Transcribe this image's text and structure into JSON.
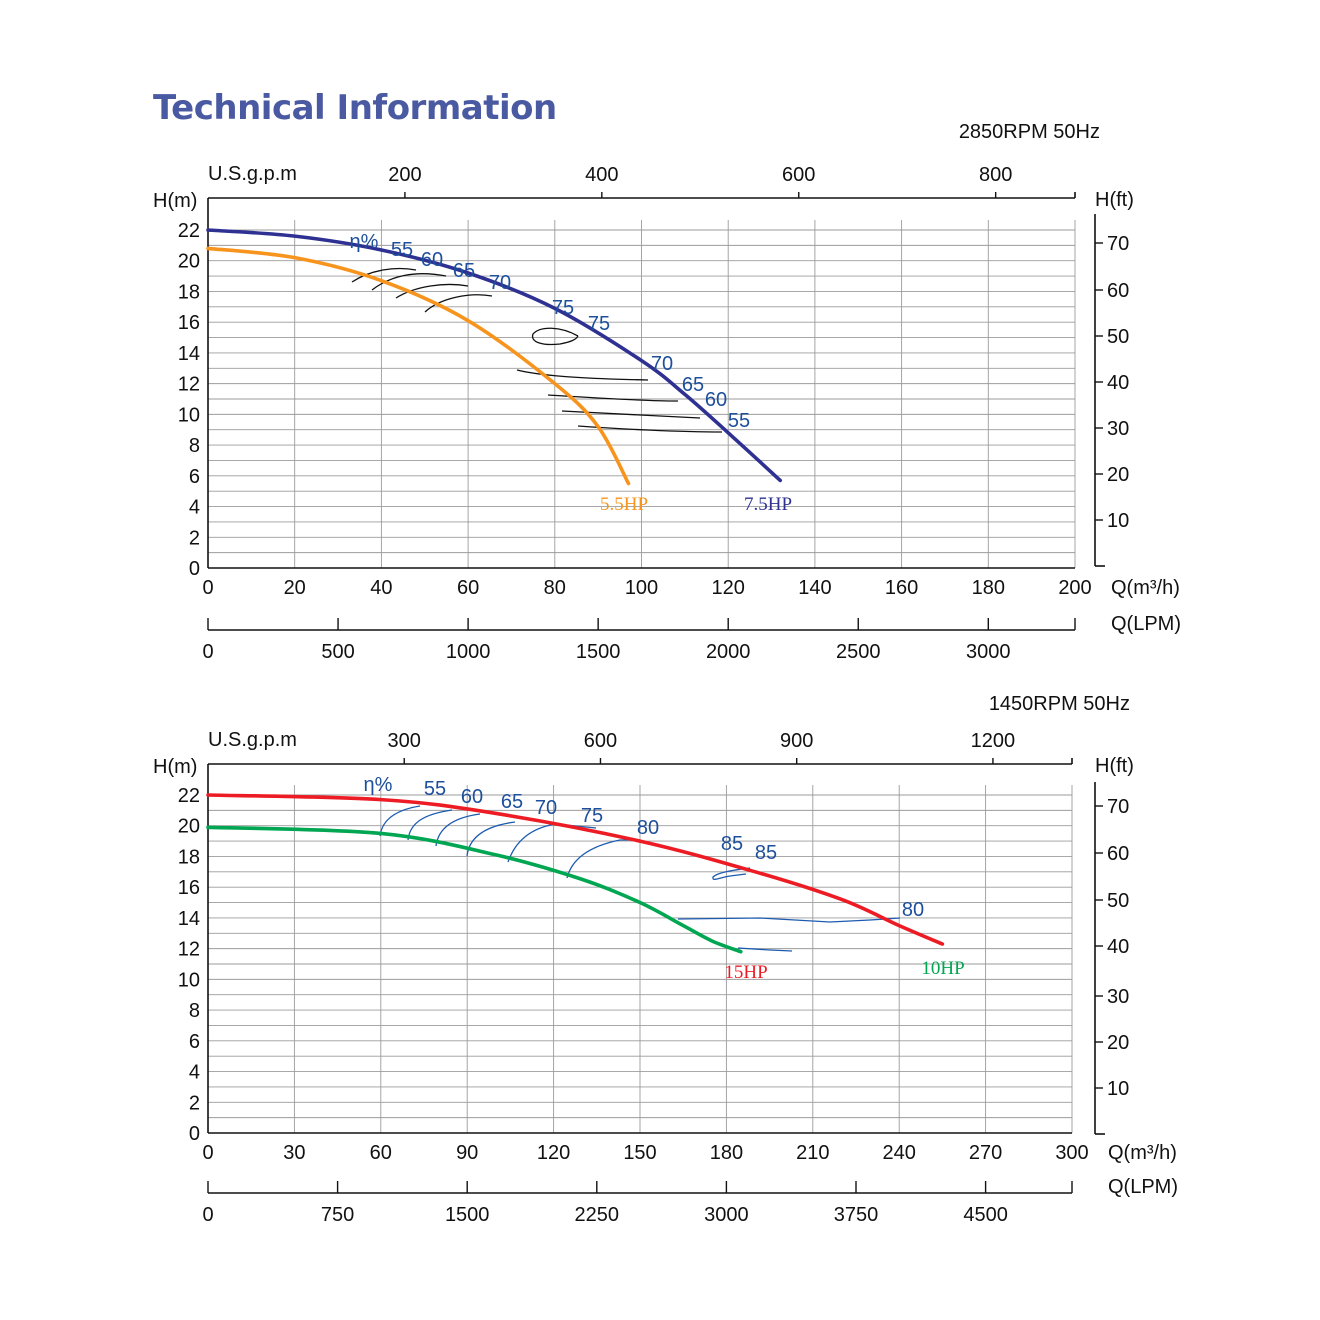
{
  "page": {
    "title": "Technical Information"
  },
  "chart_data": [
    {
      "type": "line",
      "speed_label": "2850RPM  50Hz",
      "xlabel": "Q(m³/h)",
      "xlabel_secondary": "Q(LPM)",
      "xlabel_top": "U.S.g.p.m",
      "ylabel": "H(m)",
      "ylabel_right": "H(ft)",
      "xlim": [
        0,
        200
      ],
      "ylim": [
        0,
        22
      ],
      "grid": true,
      "x_ticks": [
        "0",
        "20",
        "40",
        "60",
        "80",
        "100",
        "120",
        "140",
        "160",
        "180",
        "200"
      ],
      "y_ticks": [
        "0",
        "2",
        "4",
        "6",
        "8",
        "10",
        "12",
        "14",
        "16",
        "18",
        "20",
        "22"
      ],
      "top_ticks": [
        "200",
        "400",
        "600",
        "800"
      ],
      "right_ticks": [
        "10",
        "20",
        "30",
        "40",
        "50",
        "60",
        "70"
      ],
      "lpm_ticks": [
        "0",
        "500",
        "1000",
        "1500",
        "2000",
        "2500",
        "3000"
      ],
      "series": [
        {
          "name": "7.5HP",
          "color": "#2e3192",
          "points": [
            [
              0,
              22
            ],
            [
              20,
              21.6
            ],
            [
              40,
              20.7
            ],
            [
              60,
              19.2
            ],
            [
              80,
              16.9
            ],
            [
              100,
              13.5
            ],
            [
              110,
              11.3
            ],
            [
              120,
              8.8
            ],
            [
              132,
              5.7
            ]
          ]
        },
        {
          "name": "5.5HP",
          "color": "#f7941d",
          "points": [
            [
              0,
              20.8
            ],
            [
              20,
              20.2
            ],
            [
              40,
              18.7
            ],
            [
              60,
              16.1
            ],
            [
              80,
              12.0
            ],
            [
              90,
              9.2
            ],
            [
              97,
              5.5
            ]
          ]
        }
      ],
      "efficiency_symbol": "η%",
      "efficiency_labels": [
        "55",
        "60",
        "65",
        "70",
        "75",
        "75",
        "70",
        "65",
        "60",
        "55"
      ]
    },
    {
      "type": "line",
      "speed_label": "1450RPM  50Hz",
      "xlabel": "Q(m³/h)",
      "xlabel_secondary": "Q(LPM)",
      "xlabel_top": "U.S.g.p.m",
      "ylabel": "H(m)",
      "ylabel_right": "H(ft)",
      "xlim": [
        0,
        300
      ],
      "ylim": [
        0,
        22
      ],
      "grid": true,
      "x_ticks": [
        "0",
        "30",
        "60",
        "90",
        "120",
        "150",
        "180",
        "210",
        "240",
        "270",
        "300"
      ],
      "y_ticks": [
        "0",
        "2",
        "4",
        "6",
        "8",
        "10",
        "12",
        "14",
        "16",
        "18",
        "20",
        "22"
      ],
      "top_ticks": [
        "300",
        "600",
        "900",
        "1200"
      ],
      "right_ticks": [
        "10",
        "20",
        "30",
        "40",
        "50",
        "60",
        "70"
      ],
      "lpm_ticks": [
        "0",
        "750",
        "1500",
        "2250",
        "3000",
        "3750",
        "4500"
      ],
      "series": [
        {
          "name": "15HP",
          "color": "#ed1c24",
          "points": [
            [
              0,
              22
            ],
            [
              60,
              21.7
            ],
            [
              100,
              20.8
            ],
            [
              150,
              19.0
            ],
            [
              190,
              17.0
            ],
            [
              220,
              15.2
            ],
            [
              240,
              13.5
            ],
            [
              255,
              12.3
            ]
          ]
        },
        {
          "name": "10HP",
          "color": "#00a651",
          "points": [
            [
              0,
              19.9
            ],
            [
              60,
              19.5
            ],
            [
              100,
              18.1
            ],
            [
              130,
              16.5
            ],
            [
              150,
              15.0
            ],
            [
              165,
              13.5
            ],
            [
              175,
              12.5
            ],
            [
              185,
              11.8
            ]
          ]
        }
      ],
      "efficiency_symbol": "η%",
      "efficiency_labels": [
        "55",
        "60",
        "65",
        "70",
        "75",
        "80",
        "85",
        "85",
        "80"
      ]
    }
  ]
}
